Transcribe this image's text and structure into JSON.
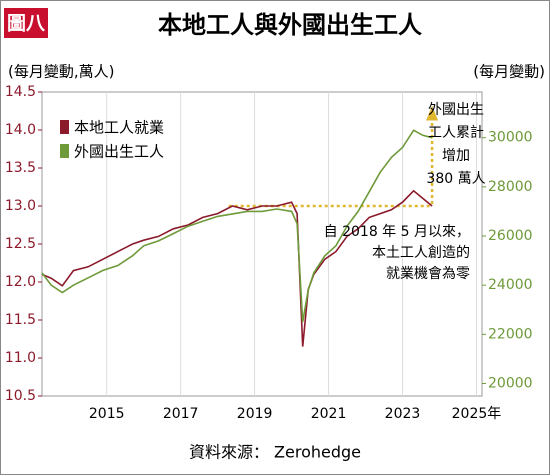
{
  "chart_data": {
    "type": "line",
    "badge": "圖八",
    "title": "本地工人與外國出生工人",
    "y_label": "(每月變動,萬人)",
    "y2_label": "(每月變動)",
    "source": "資料來源： Zerohedge",
    "xlim": [
      2013.25,
      2025.15
    ],
    "xticks": [
      2015,
      2017,
      2019,
      2021,
      2023,
      {
        "value": 2025,
        "label": "2025年"
      }
    ],
    "ylim": [
      10.5,
      14.5
    ],
    "yticks": [
      10.5,
      {
        "value": 11,
        "label": "11.0"
      },
      11.5,
      {
        "value": 12,
        "label": "12.0"
      },
      12.5,
      {
        "value": 13,
        "label": "13.0"
      },
      13.5,
      {
        "value": 14,
        "label": "14.0"
      },
      14.5
    ],
    "y2lim": [
      19490,
      31860
    ],
    "y2ticks": [
      20000,
      22000,
      24000,
      26000,
      28000,
      30000
    ],
    "legend": "top-left",
    "series": [
      {
        "name": "本地工人就業",
        "color": "#8b1a2b",
        "x": [
          2013.25,
          2013.5,
          2013.8,
          2014.1,
          2014.5,
          2014.9,
          2015.3,
          2015.7,
          2016.0,
          2016.4,
          2016.8,
          2017.2,
          2017.6,
          2018.0,
          2018.4,
          2018.8,
          2019.2,
          2019.6,
          2020.0,
          2020.15,
          2020.3,
          2020.45,
          2020.6,
          2020.9,
          2021.2,
          2021.5,
          2021.8,
          2022.1,
          2022.4,
          2022.7,
          2023.0,
          2023.3,
          2023.55,
          2023.8
        ],
        "values": [
          12.1,
          12.05,
          11.95,
          12.15,
          12.2,
          12.3,
          12.4,
          12.5,
          12.55,
          12.6,
          12.7,
          12.75,
          12.85,
          12.9,
          13.0,
          12.95,
          13.0,
          13.0,
          13.05,
          12.9,
          11.15,
          11.9,
          12.1,
          12.3,
          12.4,
          12.6,
          12.7,
          12.85,
          12.9,
          12.95,
          13.05,
          13.2,
          13.1,
          13.0
        ]
      },
      {
        "name": "外國出生工人",
        "color": "#6e9a3a",
        "axis": "y2",
        "x": [
          2013.25,
          2013.5,
          2013.8,
          2014.1,
          2014.5,
          2014.9,
          2015.3,
          2015.7,
          2016.0,
          2016.4,
          2016.8,
          2017.2,
          2017.6,
          2018.0,
          2018.4,
          2018.8,
          2019.2,
          2019.6,
          2020.0,
          2020.15,
          2020.3,
          2020.45,
          2020.6,
          2020.9,
          2021.2,
          2021.5,
          2021.8,
          2022.1,
          2022.4,
          2022.7,
          2023.0,
          2023.3,
          2023.55,
          2023.8
        ],
        "values": [
          24500,
          24000,
          23700,
          24000,
          24300,
          24600,
          24800,
          25200,
          25600,
          25800,
          26100,
          26400,
          26600,
          26800,
          26900,
          27000,
          27000,
          27100,
          27000,
          26500,
          22500,
          23800,
          24500,
          25200,
          25600,
          26400,
          27000,
          27800,
          28600,
          29200,
          29600,
          30300,
          30100,
          30000
        ]
      }
    ],
    "annotations": [
      {
        "lines": [
          "外國出生",
          "工人累計",
          "增加",
          "380 萬人"
        ]
      },
      {
        "lines": [
          "自 2018 年 5 月以來，",
          "本土工人創造的",
          "就業機會為零"
        ]
      }
    ]
  }
}
